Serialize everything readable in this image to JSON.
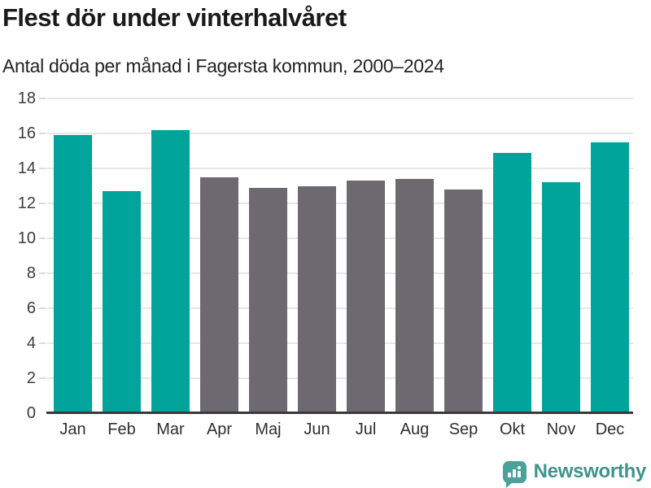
{
  "header": {
    "title": "Flest dör under vinterhalvåret",
    "subtitle": "Antal döda per månad i Fagersta kommun, 2000–2024"
  },
  "chart_data": {
    "type": "bar",
    "title": "Flest dör under vinterhalvåret",
    "subtitle": "Antal döda per månad i Fagersta kommun, 2000–2024",
    "categories": [
      "Jan",
      "Feb",
      "Mar",
      "Apr",
      "Maj",
      "Jun",
      "Jul",
      "Aug",
      "Sep",
      "Okt",
      "Nov",
      "Dec"
    ],
    "values": [
      15.9,
      12.7,
      16.2,
      13.5,
      12.9,
      13.0,
      13.3,
      13.4,
      12.8,
      14.9,
      13.2,
      15.5
    ],
    "highlighted": [
      true,
      true,
      true,
      false,
      false,
      false,
      false,
      false,
      false,
      true,
      true,
      true
    ],
    "xlabel": "",
    "ylabel": "",
    "ylim": [
      0,
      18
    ],
    "yticks": [
      0,
      2,
      4,
      6,
      8,
      10,
      12,
      14,
      16,
      18
    ],
    "grid": true,
    "legend": "none",
    "colors": {
      "highlight": "#00a49b",
      "muted": "#6c6a70",
      "gridline": "#e7e7e7",
      "axis": "#3a3a3a"
    }
  },
  "branding": {
    "logo_text": "Newsworthy",
    "logo_color": "#3f948d",
    "icon": "bar-chart-speech-bubble-icon",
    "icon_color": "#4aa29a"
  }
}
